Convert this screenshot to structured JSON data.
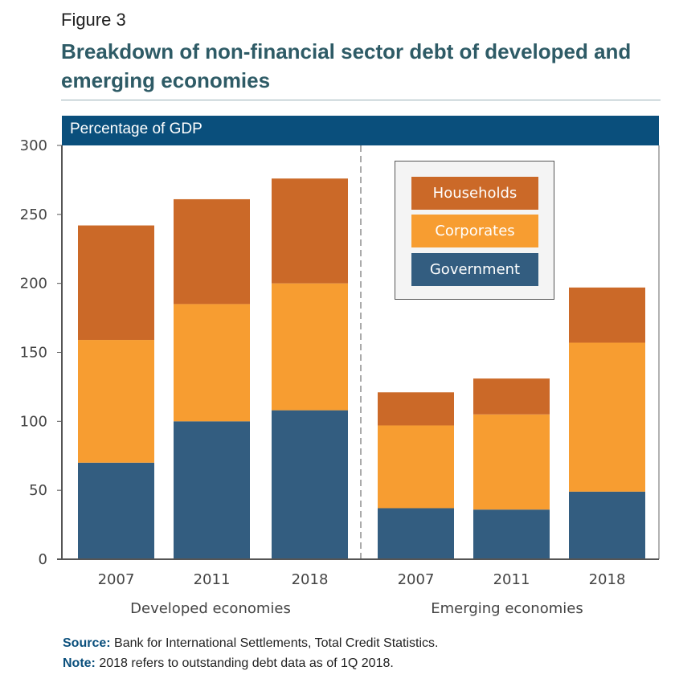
{
  "figure_label": "Figure 3",
  "title": "Breakdown of non-financial sector debt of developed and emerging economies",
  "footer": {
    "source_label": "Source:",
    "source_text": " Bank for International Settlements, Total Credit Statistics.",
    "note_label": "Note:",
    "note_text": " 2018 refers to outstanding debt data as of 1Q 2018."
  },
  "colors": {
    "Households": "#cb6928",
    "Corporates": "#f79d31",
    "Government": "#335d80",
    "header": "#0a4f7c"
  },
  "chart_data": {
    "type": "bar",
    "stacked": true,
    "title": "Breakdown of non-financial sector debt of developed and emerging economies",
    "ylabel": "Percentage of GDP",
    "xlabel": "",
    "ylim": [
      0,
      300
    ],
    "yticks": [
      "0",
      "50",
      "100",
      "150",
      "200",
      "250",
      "300"
    ],
    "groups": [
      {
        "name": "Developed economies",
        "categories": [
          "2007",
          "2011",
          "2018"
        ]
      },
      {
        "name": "Emerging economies",
        "categories": [
          "2007",
          "2011",
          "2018"
        ]
      }
    ],
    "categories": [
      "2007",
      "2011",
      "2018",
      "2007",
      "2011",
      "2018"
    ],
    "series": [
      {
        "name": "Government",
        "values": [
          70,
          100,
          108,
          37,
          36,
          49
        ]
      },
      {
        "name": "Corporates",
        "values": [
          89,
          85,
          92,
          60,
          69,
          108
        ]
      },
      {
        "name": "Households",
        "values": [
          83,
          76,
          76,
          24,
          26,
          40
        ]
      }
    ],
    "legend": [
      "Households",
      "Corporates",
      "Government"
    ],
    "legend_position": "top-right",
    "grid": false
  }
}
